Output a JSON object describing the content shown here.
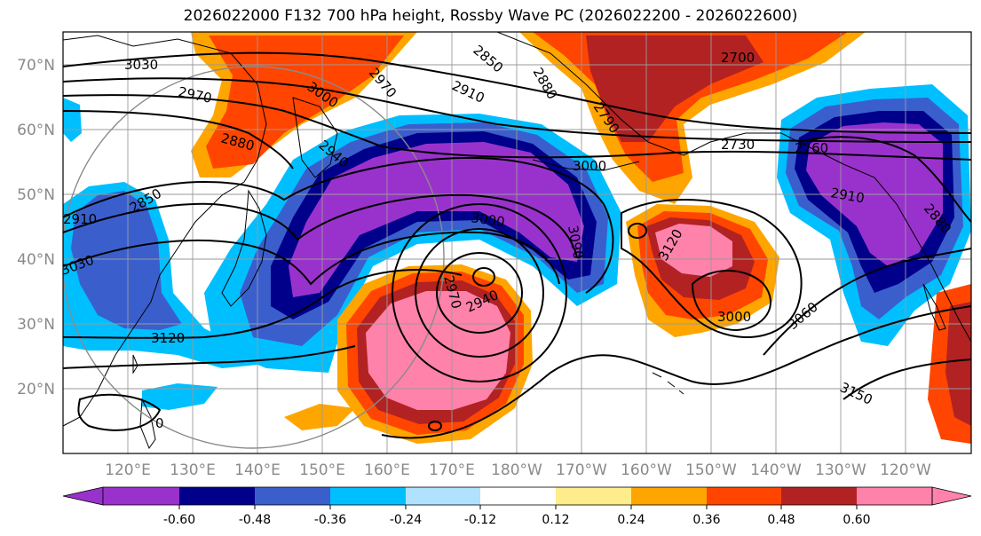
{
  "title": "2026022000 F132 700 hPa height, Rossby Wave PC (2026022200 - 2026022600)",
  "latitude_labels": [
    "70°N",
    "60°N",
    "50°N",
    "40°N",
    "30°N",
    "20°N"
  ],
  "longitude_labels": [
    "120°E",
    "130°E",
    "140°E",
    "150°E",
    "160°E",
    "170°E",
    "180°W",
    "170°W",
    "160°W",
    "150°W",
    "140°W",
    "130°W",
    "120°W"
  ],
  "contour_labels": [
    "3030",
    "3000",
    "2970",
    "2880",
    "2940",
    "2850",
    "2910",
    "3030",
    "3120",
    "2850",
    "2970",
    "2910",
    "2880",
    "2790",
    "2700",
    "2730",
    "3000",
    "3000",
    "3090",
    "2970",
    "2940",
    "3120",
    "3000",
    "3060",
    "3150",
    "2760",
    "2910",
    "2880",
    "0"
  ],
  "colorbar": {
    "ticks": [
      "-0.60",
      "-0.48",
      "-0.36",
      "-0.24",
      "-0.12",
      "0.12",
      "0.24",
      "0.36",
      "0.48",
      "0.60"
    ],
    "colors": [
      "#9932cc",
      "#00008b",
      "#3a5fcd",
      "#00bfff",
      "#b0e2ff",
      "#ffffff",
      "#ffec8b",
      "#ffa500",
      "#ff4500",
      "#b22222",
      "#ff82ab"
    ]
  },
  "colors": {
    "purple": "#9932cc",
    "navy": "#00008b",
    "blue": "#3a5fcd",
    "deepskyblue": "#00bfff",
    "lightblue": "#b0e2ff",
    "yellow": "#ffec8b",
    "orange": "#ffa500",
    "orangered": "#ff4500",
    "firebrick": "#b22222",
    "pink": "#ff82ab"
  }
}
